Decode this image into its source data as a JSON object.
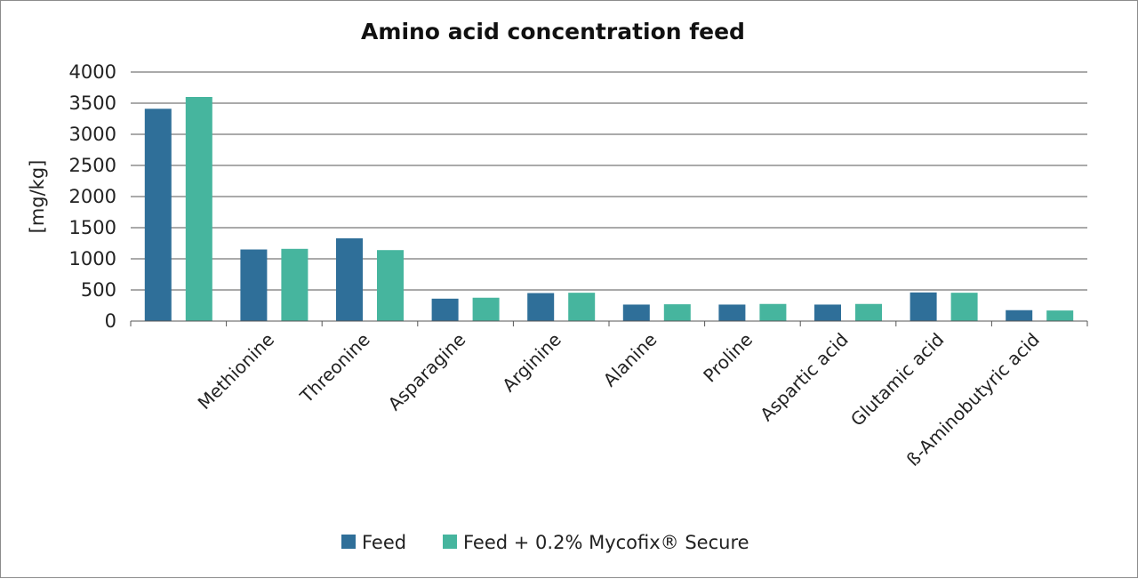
{
  "chart_data": {
    "type": "bar",
    "title": "Amino acid concentration feed",
    "xlabel": "",
    "ylabel": "[mg/kg]",
    "ylim": [
      0,
      4000
    ],
    "yticks": [
      0,
      500,
      1000,
      1500,
      2000,
      2500,
      3000,
      3500,
      4000
    ],
    "grid": true,
    "legend_position": "bottom",
    "categories": [
      "",
      "Methionine",
      "Threonine",
      "Asparagine",
      "Arginine",
      "Alanine",
      "Proline",
      "Aspartic acid",
      "Glutamic acid",
      "ß-Aminobutyric acid"
    ],
    "series": [
      {
        "name": "Feed",
        "color": "#2f6f99",
        "values": [
          3410,
          1150,
          1330,
          360,
          450,
          265,
          265,
          265,
          460,
          175
        ]
      },
      {
        "name": "Feed + 0.2% Mycofix® Secure",
        "color": "#46b59e",
        "values": [
          3600,
          1160,
          1140,
          375,
          455,
          270,
          275,
          275,
          455,
          170
        ]
      }
    ]
  }
}
